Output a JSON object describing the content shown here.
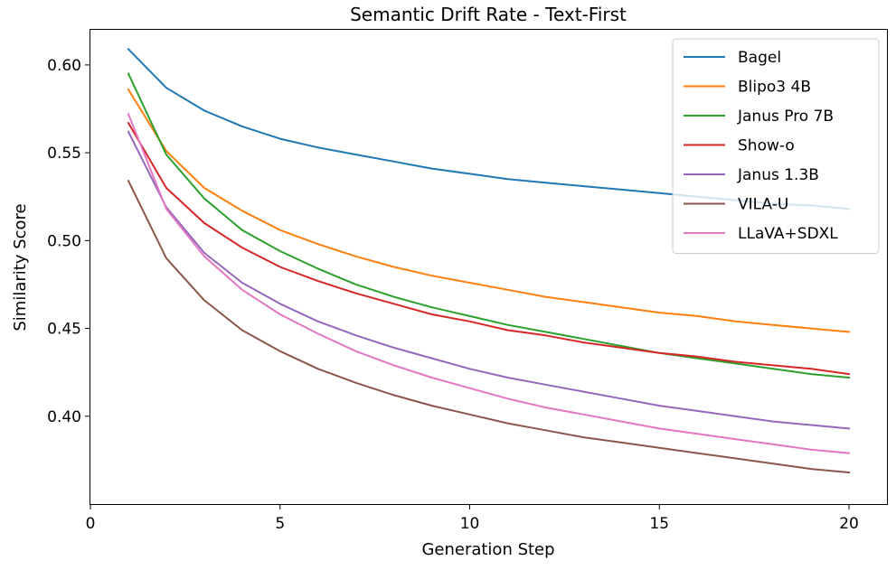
{
  "chart_data": {
    "type": "line",
    "title": "Semantic Drift Rate - Text-First",
    "xlabel": "Generation Step",
    "ylabel": "Similarity Score",
    "xlim": [
      0,
      21
    ],
    "ylim": [
      0.35,
      0.62
    ],
    "xticks": [
      0,
      5,
      10,
      15,
      20
    ],
    "xtick_labels": [
      "0",
      "5",
      "10",
      "15",
      "20"
    ],
    "yticks": [
      0.4,
      0.45,
      0.5,
      0.55,
      0.6
    ],
    "ytick_labels": [
      "0.40",
      "0.45",
      "0.50",
      "0.55",
      "0.60"
    ],
    "grid": false,
    "legend_position": "top-right",
    "x": [
      1,
      2,
      3,
      4,
      5,
      6,
      7,
      8,
      9,
      10,
      11,
      12,
      13,
      14,
      15,
      16,
      17,
      18,
      19,
      20
    ],
    "series": [
      {
        "name": "Bagel",
        "color": "#1f77b4",
        "values": [
          0.609,
          0.587,
          0.574,
          0.565,
          0.558,
          0.553,
          0.549,
          0.545,
          0.541,
          0.538,
          0.535,
          0.533,
          0.531,
          0.529,
          0.527,
          0.525,
          0.523,
          0.521,
          0.52,
          0.518
        ]
      },
      {
        "name": "Blipo3 4B",
        "color": "#ff7f0e",
        "values": [
          0.586,
          0.551,
          0.53,
          0.517,
          0.506,
          0.498,
          0.491,
          0.485,
          0.48,
          0.476,
          0.472,
          0.468,
          0.465,
          0.462,
          0.459,
          0.457,
          0.454,
          0.452,
          0.45,
          0.448
        ]
      },
      {
        "name": "Janus Pro 7B",
        "color": "#2ca02c",
        "values": [
          0.595,
          0.549,
          0.524,
          0.506,
          0.494,
          0.484,
          0.475,
          0.468,
          0.462,
          0.457,
          0.452,
          0.448,
          0.444,
          0.44,
          0.436,
          0.433,
          0.43,
          0.427,
          0.424,
          0.422
        ]
      },
      {
        "name": "Show-o",
        "color": "#d62728",
        "values": [
          0.567,
          0.53,
          0.51,
          0.496,
          0.485,
          0.477,
          0.47,
          0.464,
          0.458,
          0.454,
          0.449,
          0.446,
          0.442,
          0.439,
          0.436,
          0.434,
          0.431,
          0.429,
          0.427,
          0.424
        ]
      },
      {
        "name": "Janus 1.3B",
        "color": "#9467bd",
        "values": [
          0.562,
          0.519,
          0.493,
          0.476,
          0.464,
          0.454,
          0.446,
          0.439,
          0.433,
          0.427,
          0.422,
          0.418,
          0.414,
          0.41,
          0.406,
          0.403,
          0.4,
          0.397,
          0.395,
          0.393
        ]
      },
      {
        "name": "VILA-U",
        "color": "#8c564b",
        "values": [
          0.534,
          0.49,
          0.466,
          0.449,
          0.437,
          0.427,
          0.419,
          0.412,
          0.406,
          0.401,
          0.396,
          0.392,
          0.388,
          0.385,
          0.382,
          0.379,
          0.376,
          0.373,
          0.37,
          0.368
        ]
      },
      {
        "name": "LLaVA+SDXL",
        "color": "#e377c2",
        "values": [
          0.572,
          0.518,
          0.491,
          0.472,
          0.458,
          0.447,
          0.437,
          0.429,
          0.422,
          0.416,
          0.41,
          0.405,
          0.401,
          0.397,
          0.393,
          0.39,
          0.387,
          0.384,
          0.381,
          0.379
        ]
      }
    ]
  }
}
